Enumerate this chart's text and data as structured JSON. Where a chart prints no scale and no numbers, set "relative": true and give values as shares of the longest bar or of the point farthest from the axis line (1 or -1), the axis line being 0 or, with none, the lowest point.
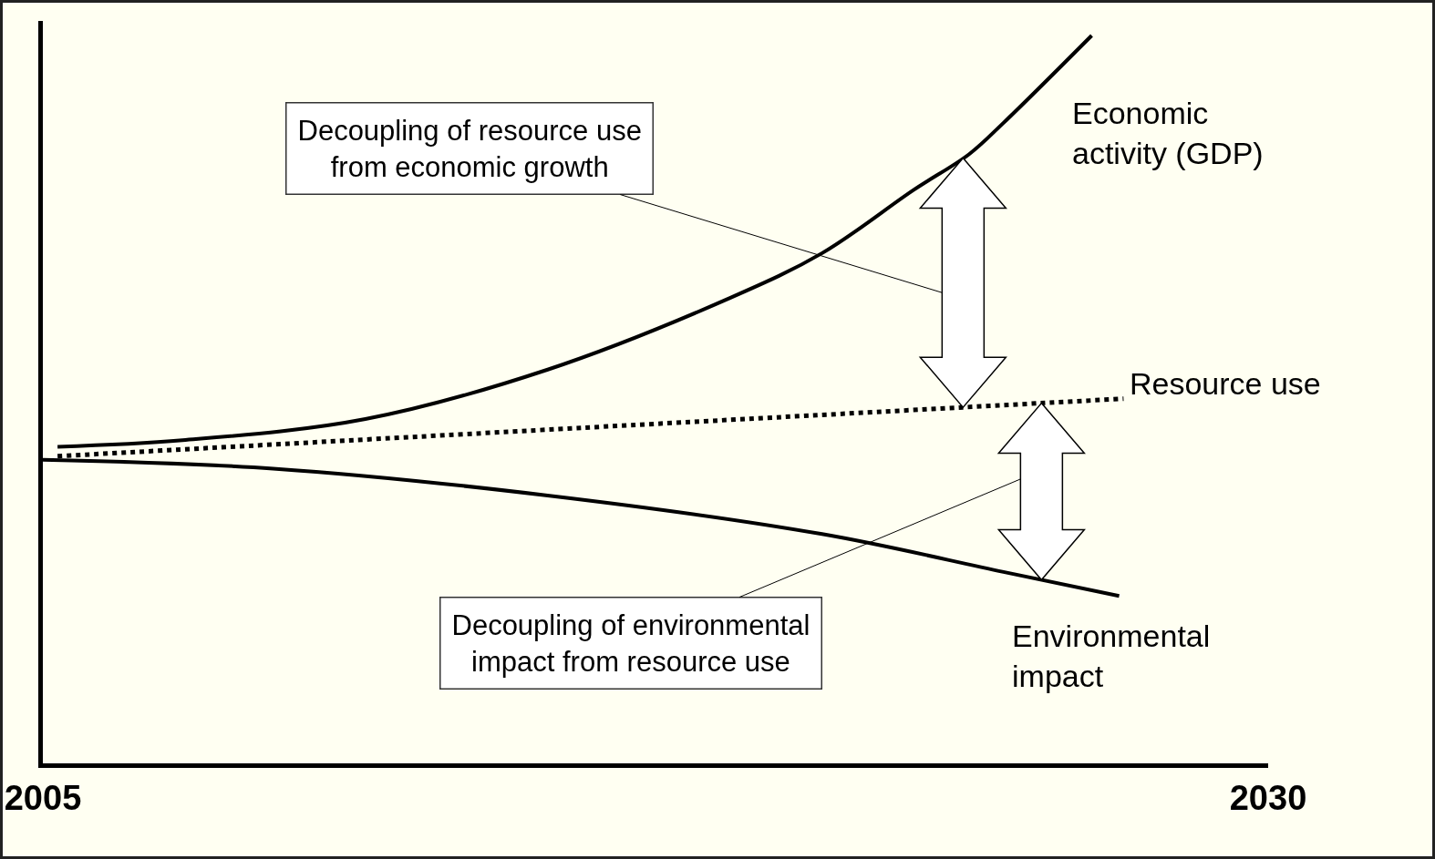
{
  "chart_data": {
    "type": "line",
    "relative": true,
    "legend": false,
    "marker": "none",
    "xlim": [
      2005,
      2030
    ],
    "xticks": [
      2005,
      2030
    ],
    "series": [
      {
        "name": "Economic\nactivity (GDP)",
        "color": "#000000",
        "line_style": "solid",
        "x": [
          2005.3,
          2007.85,
          2011.58,
          2015.3,
          2019.04,
          2020.9,
          2022.77,
          2023.9,
          2024.6,
          2026.4
        ],
        "values": [
          0.435,
          0.444,
          0.473,
          0.541,
          0.64,
          0.701,
          0.788,
          0.837,
          0.88,
          1
        ]
      },
      {
        "name": "Resource use",
        "color": "#000000",
        "line_style": "dotted",
        "x": [
          2005.3,
          2016,
          2027.05
        ],
        "values": [
          0.422,
          0.461,
          0.501
        ]
      },
      {
        "name": "Environmental\nimpact",
        "color": "#000000",
        "line_style": "solid",
        "x": [
          2005,
          2009.7,
          2015.3,
          2020.9,
          2024.6,
          2026.96
        ],
        "values": [
          0.417,
          0.405,
          0.368,
          0.315,
          0.263,
          0.23
        ]
      }
    ],
    "annotations": [
      "Decoupling of resource use\nfrom economic growth",
      "Decoupling of environmental\nimpact from resource use"
    ]
  }
}
